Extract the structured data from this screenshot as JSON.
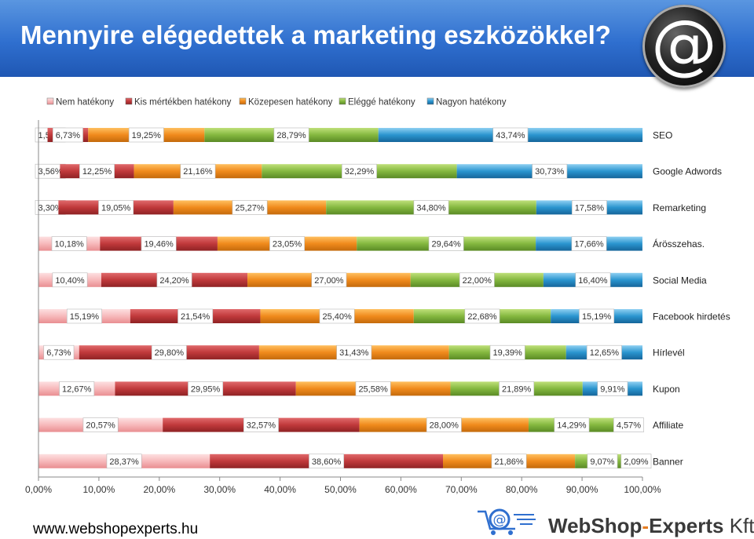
{
  "title": "Mennyire elégedettek a marketing eszközökkel?",
  "footer": {
    "url": "www.webshopexperts.hu",
    "brand_part1": "WebShop",
    "brand_dash": "-",
    "brand_part2": "Experts",
    "brand_suffix": " Kft."
  },
  "logo": {
    "icon": "at-sign-icon"
  },
  "colors": {
    "header": "#2f6fcf",
    "series": [
      "#f4a6a8",
      "#c0393b",
      "#f08a1c",
      "#84b83f",
      "#2a95cf"
    ]
  },
  "chart_data": {
    "type": "bar",
    "orientation": "horizontal",
    "stacked": true,
    "legend_position": "top",
    "x_range": [
      0,
      100
    ],
    "x_ticks": [
      "0,00%",
      "10,00%",
      "20,00%",
      "30,00%",
      "40,00%",
      "50,00%",
      "60,00%",
      "70,00%",
      "80,00%",
      "90,00%",
      "100,00%"
    ],
    "categories": [
      "SEO",
      "Google Adwords",
      "Remarketing",
      "Árösszehas.",
      "Social Media",
      "Facebook hirdetés",
      "Hírlevél",
      "Kupon",
      "Affiliate",
      "Banner"
    ],
    "series": [
      {
        "name": "Nem hatékony",
        "values": [
          1.5,
          3.56,
          3.3,
          10.18,
          10.4,
          15.19,
          6.73,
          12.67,
          20.57,
          28.37
        ],
        "labels": [
          "1,50%",
          "3,56%",
          "3,30%",
          "10,18%",
          "10,40%",
          "15,19%",
          "6,73%",
          "12,67%",
          "20,57%",
          "28,37%"
        ]
      },
      {
        "name": "Kis mértékben hatékony",
        "values": [
          6.73,
          12.25,
          19.05,
          19.46,
          24.2,
          21.54,
          29.8,
          29.95,
          32.57,
          38.6
        ],
        "labels": [
          "6,73%",
          "12,25%",
          "19,05%",
          "19,46%",
          "24,20%",
          "21,54%",
          "29,80%",
          "29,95%",
          "32,57%",
          "38,60%"
        ]
      },
      {
        "name": "Közepesen hatékony",
        "values": [
          19.25,
          21.16,
          25.27,
          23.05,
          27.0,
          25.4,
          31.43,
          25.58,
          28.0,
          21.86
        ],
        "labels": [
          "19,25%",
          "21,16%",
          "25,27%",
          "23,05%",
          "27,00%",
          "25,40%",
          "31,43%",
          "25,58%",
          "28,00%",
          "21,86%"
        ]
      },
      {
        "name": "Eléggé hatékony",
        "values": [
          28.79,
          32.29,
          34.8,
          29.64,
          22.0,
          22.68,
          19.39,
          21.89,
          14.29,
          9.07
        ],
        "labels": [
          "28,79%",
          "32,29%",
          "34,80%",
          "29,64%",
          "22,00%",
          "22,68%",
          "19,39%",
          "21,89%",
          "14,29%",
          "9,07%"
        ]
      },
      {
        "name": "Nagyon hatékony",
        "values": [
          43.74,
          30.73,
          17.58,
          17.66,
          16.4,
          15.19,
          12.65,
          9.91,
          4.57,
          2.09
        ],
        "labels": [
          "43,74%",
          "30,73%",
          "17,58%",
          "17,66%",
          "16,40%",
          "15,19%",
          "12,65%",
          "9,91%",
          "4,57%",
          "2,09%"
        ]
      }
    ]
  }
}
